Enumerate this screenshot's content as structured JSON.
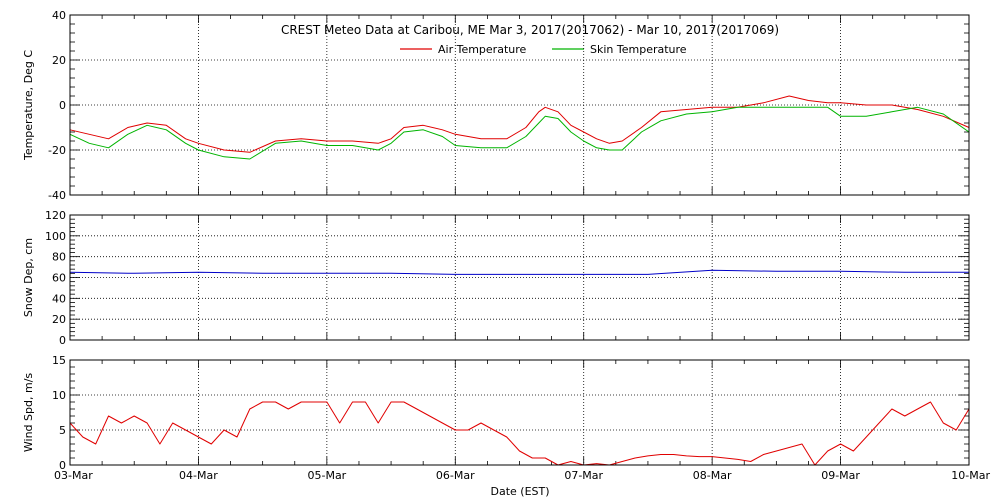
{
  "chart_data": {
    "type": "line",
    "title": "CREST Meteo Data at Caribou, ME   Mar  3, 2017(2017062) - Mar 10, 2017(2017069)",
    "xlabel": "Date (EST)",
    "x_tick_labels": [
      "03-Mar",
      "04-Mar",
      "05-Mar",
      "06-Mar",
      "07-Mar",
      "08-Mar",
      "09-Mar",
      "10-Mar"
    ],
    "grid": true,
    "colors": {
      "air": "#e00000",
      "skin": "#00b400",
      "snow": "#0000c8",
      "wind": "#e00000"
    },
    "panels": [
      {
        "ylabel": "Temperature, Deg C",
        "ylim": [
          -40,
          40
        ],
        "yticks": [
          -40,
          -20,
          0,
          20,
          40
        ],
        "legend_position": "top-center",
        "series": [
          {
            "name": "Air Temperature",
            "color_key": "air",
            "x": [
              0,
              0.15,
              0.3,
              0.45,
              0.6,
              0.75,
              0.9,
              1.0,
              1.2,
              1.4,
              1.6,
              1.8,
              2.0,
              2.2,
              2.4,
              2.5,
              2.6,
              2.75,
              2.9,
              3.0,
              3.2,
              3.4,
              3.55,
              3.65,
              3.7,
              3.8,
              3.9,
              4.0,
              4.1,
              4.2,
              4.3,
              4.45,
              4.6,
              4.8,
              5.0,
              5.2,
              5.4,
              5.6,
              5.75,
              5.9,
              6.0,
              6.2,
              6.4,
              6.6,
              6.8,
              7.0
            ],
            "y": [
              -11,
              -13,
              -15,
              -10,
              -8,
              -9,
              -15,
              -17,
              -20,
              -21,
              -16,
              -15,
              -16,
              -16,
              -17,
              -15,
              -10,
              -9,
              -11,
              -13,
              -15,
              -15,
              -10,
              -3,
              -1,
              -3,
              -9,
              -12,
              -15,
              -17,
              -16,
              -10,
              -3,
              -2,
              -1,
              -1,
              1,
              4,
              2,
              1,
              1,
              0,
              0,
              -2,
              -5,
              -10
            ]
          },
          {
            "name": "Skin Temperature",
            "color_key": "skin",
            "x": [
              0,
              0.15,
              0.3,
              0.45,
              0.6,
              0.75,
              0.9,
              1.0,
              1.2,
              1.4,
              1.6,
              1.8,
              2.0,
              2.2,
              2.4,
              2.5,
              2.6,
              2.75,
              2.9,
              3.0,
              3.2,
              3.4,
              3.55,
              3.65,
              3.7,
              3.8,
              3.9,
              4.0,
              4.1,
              4.2,
              4.3,
              4.45,
              4.6,
              4.8,
              5.0,
              5.2,
              5.4,
              5.6,
              5.75,
              5.9,
              6.0,
              6.2,
              6.4,
              6.6,
              6.8,
              7.0
            ],
            "y": [
              -13,
              -17,
              -19,
              -13,
              -9,
              -11,
              -17,
              -20,
              -23,
              -24,
              -17,
              -16,
              -18,
              -18,
              -20,
              -17,
              -12,
              -11,
              -14,
              -18,
              -19,
              -19,
              -14,
              -8,
              -5,
              -6,
              -12,
              -16,
              -19,
              -20,
              -20,
              -12,
              -7,
              -4,
              -3,
              -1,
              -1,
              -1,
              -1,
              -1,
              -5,
              -5,
              -3,
              -1,
              -4,
              -12
            ]
          }
        ]
      },
      {
        "ylabel": "Snow Dep, cm",
        "ylim": [
          0,
          120
        ],
        "yticks": [
          0,
          20,
          40,
          60,
          80,
          100,
          120
        ],
        "series": [
          {
            "name": "",
            "color_key": "snow",
            "x": [
              0,
              0.5,
              1.0,
              1.5,
              2.0,
              2.5,
              3.0,
              3.5,
              4.0,
              4.5,
              5.0,
              5.5,
              6.0,
              6.5,
              7.0
            ],
            "y": [
              65,
              64,
              65,
              64,
              64,
              64,
              63,
              63,
              63,
              63,
              67,
              66,
              66,
              65,
              65
            ]
          }
        ]
      },
      {
        "ylabel": "Wind Spd, m/s",
        "ylim": [
          0,
          15
        ],
        "yticks": [
          0,
          5,
          10,
          15
        ],
        "series": [
          {
            "name": "",
            "color_key": "wind",
            "x": [
              0,
              0.1,
              0.2,
              0.3,
              0.4,
              0.5,
              0.6,
              0.7,
              0.8,
              0.9,
              1.0,
              1.1,
              1.2,
              1.3,
              1.4,
              1.5,
              1.6,
              1.7,
              1.8,
              1.9,
              2.0,
              2.1,
              2.2,
              2.3,
              2.4,
              2.5,
              2.6,
              2.7,
              2.8,
              2.9,
              3.0,
              3.1,
              3.2,
              3.3,
              3.4,
              3.5,
              3.6,
              3.7,
              3.8,
              3.9,
              4.0,
              4.1,
              4.2,
              4.3,
              4.4,
              4.5,
              4.6,
              4.7,
              4.8,
              4.9,
              5.0,
              5.1,
              5.2,
              5.3,
              5.4,
              5.5,
              5.6,
              5.7,
              5.8,
              5.9,
              6.0,
              6.1,
              6.2,
              6.3,
              6.4,
              6.5,
              6.6,
              6.7,
              6.8,
              6.9,
              7.0
            ],
            "y": [
              6,
              4,
              3,
              7,
              6,
              7,
              6,
              3,
              6,
              5,
              4,
              3,
              5,
              4,
              8,
              9,
              9,
              8,
              9,
              9,
              9,
              6,
              9,
              9,
              6,
              9,
              9,
              8,
              7,
              6,
              5,
              5,
              6,
              5,
              4,
              2,
              1,
              1,
              0,
              0.5,
              0,
              0.2,
              0,
              0.5,
              1,
              1.3,
              1.5,
              1.5,
              1.3,
              1.2,
              1.2,
              1.0,
              0.8,
              0.5,
              1.5,
              2,
              2.5,
              3,
              0,
              2,
              3,
              2,
              4,
              6,
              8,
              7,
              8,
              9,
              6,
              5,
              8
            ]
          }
        ]
      }
    ]
  }
}
